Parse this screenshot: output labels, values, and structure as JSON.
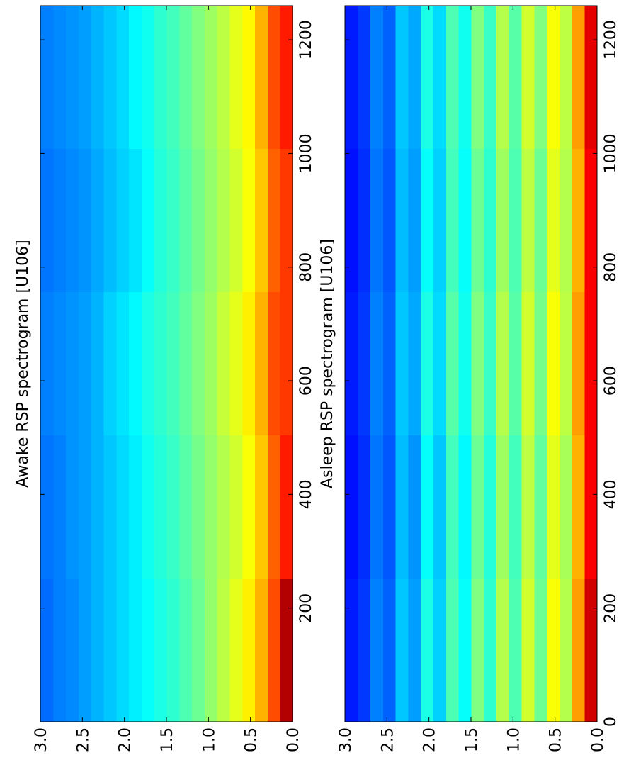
{
  "chart_data": [
    {
      "type": "heatmap",
      "title": "Awake RSP spectrogram [U106]",
      "colormap": "jet",
      "xbins": [
        0,
        252,
        504,
        756,
        1008,
        1260
      ],
      "ybins": [
        0,
        0.15,
        0.3,
        0.45,
        0.6,
        0.75,
        0.9,
        1.05,
        1.2,
        1.35,
        1.5,
        1.65,
        1.8,
        1.95,
        2.1,
        2.25,
        2.4,
        2.55,
        2.7,
        2.85,
        3.0
      ],
      "z": [
        [
          0.95,
          0.85,
          0.82,
          0.82,
          0.85
        ],
        [
          0.8,
          0.78,
          0.8,
          0.78,
          0.8
        ],
        [
          0.7,
          0.68,
          0.7,
          0.68,
          0.7
        ],
        [
          0.64,
          0.62,
          0.64,
          0.62,
          0.63
        ],
        [
          0.6,
          0.58,
          0.6,
          0.58,
          0.6
        ],
        [
          0.56,
          0.55,
          0.57,
          0.55,
          0.56
        ],
        [
          0.52,
          0.52,
          0.53,
          0.52,
          0.53
        ],
        [
          0.48,
          0.49,
          0.5,
          0.49,
          0.5
        ],
        [
          0.45,
          0.46,
          0.47,
          0.46,
          0.47
        ],
        [
          0.42,
          0.43,
          0.44,
          0.43,
          0.44
        ],
        [
          0.4,
          0.41,
          0.42,
          0.41,
          0.42
        ],
        [
          0.38,
          0.39,
          0.4,
          0.38,
          0.39
        ],
        [
          0.36,
          0.36,
          0.37,
          0.35,
          0.37
        ],
        [
          0.34,
          0.34,
          0.35,
          0.33,
          0.34
        ],
        [
          0.32,
          0.32,
          0.33,
          0.31,
          0.32
        ],
        [
          0.3,
          0.3,
          0.3,
          0.29,
          0.3
        ],
        [
          0.28,
          0.28,
          0.28,
          0.27,
          0.28
        ],
        [
          0.26,
          0.27,
          0.27,
          0.26,
          0.27
        ],
        [
          0.25,
          0.25,
          0.26,
          0.25,
          0.26
        ],
        [
          0.23,
          0.24,
          0.25,
          0.24,
          0.25
        ]
      ],
      "xlim": [
        0,
        1260
      ],
      "ylim": [
        0,
        3
      ],
      "xticks": [
        200,
        400,
        600,
        800,
        1000,
        1200
      ],
      "yticks": [
        {
          "value": 0,
          "label": "0.0"
        },
        {
          "value": 0.5,
          "label": "0.5"
        },
        {
          "value": 1,
          "label": "1.0"
        },
        {
          "value": 1.5,
          "label": "1.5"
        },
        {
          "value": 2,
          "label": "2.0"
        },
        {
          "value": 2.5,
          "label": "2.5"
        },
        {
          "value": 3,
          "label": "3.0"
        }
      ]
    },
    {
      "type": "heatmap",
      "title": "Asleep RSP spectrogram [U106]",
      "colormap": "jet",
      "xbins": [
        0,
        252,
        504,
        756,
        1008,
        1260
      ],
      "ybins": [
        0,
        0.15,
        0.3,
        0.45,
        0.6,
        0.75,
        0.9,
        1.05,
        1.2,
        1.35,
        1.5,
        1.65,
        1.8,
        1.95,
        2.1,
        2.25,
        2.4,
        2.55,
        2.7,
        2.85,
        3.0
      ],
      "z": [
        [
          0.92,
          0.88,
          0.88,
          0.88,
          0.9
        ],
        [
          0.72,
          0.7,
          0.72,
          0.7,
          0.72
        ],
        [
          0.55,
          0.54,
          0.56,
          0.55,
          0.56
        ],
        [
          0.62,
          0.6,
          0.62,
          0.6,
          0.62
        ],
        [
          0.48,
          0.47,
          0.49,
          0.48,
          0.5
        ],
        [
          0.58,
          0.56,
          0.58,
          0.56,
          0.58
        ],
        [
          0.45,
          0.44,
          0.46,
          0.45,
          0.46
        ],
        [
          0.55,
          0.53,
          0.55,
          0.53,
          0.55
        ],
        [
          0.42,
          0.41,
          0.43,
          0.42,
          0.43
        ],
        [
          0.5,
          0.48,
          0.5,
          0.48,
          0.5
        ],
        [
          0.38,
          0.37,
          0.39,
          0.38,
          0.39
        ],
        [
          0.45,
          0.44,
          0.46,
          0.44,
          0.45
        ],
        [
          0.33,
          0.32,
          0.34,
          0.33,
          0.34
        ],
        [
          0.4,
          0.38,
          0.4,
          0.38,
          0.4
        ],
        [
          0.28,
          0.27,
          0.29,
          0.28,
          0.29
        ],
        [
          0.32,
          0.31,
          0.32,
          0.31,
          0.32
        ],
        [
          0.22,
          0.21,
          0.22,
          0.21,
          0.22
        ],
        [
          0.25,
          0.24,
          0.25,
          0.24,
          0.25
        ],
        [
          0.18,
          0.17,
          0.18,
          0.17,
          0.18
        ],
        [
          0.15,
          0.14,
          0.15,
          0.14,
          0.15
        ]
      ],
      "xlim": [
        0,
        1260
      ],
      "ylim": [
        0,
        3
      ],
      "xticks": [
        0,
        200,
        400,
        600,
        800,
        1000,
        1200
      ],
      "yticks": [
        {
          "value": 0,
          "label": "0.0"
        },
        {
          "value": 0.5,
          "label": "0.5"
        },
        {
          "value": 1,
          "label": "1.0"
        },
        {
          "value": 1.5,
          "label": "1.5"
        },
        {
          "value": 2,
          "label": "2.0"
        },
        {
          "value": 2.5,
          "label": "2.5"
        },
        {
          "value": 3,
          "label": "3.0"
        }
      ]
    }
  ]
}
